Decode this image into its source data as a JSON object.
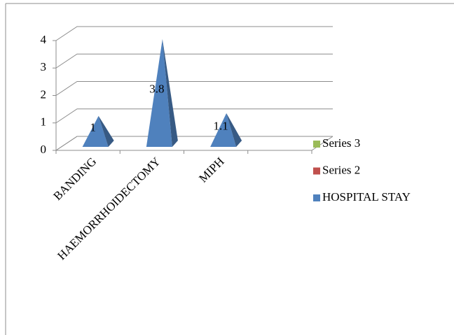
{
  "chart_data": {
    "type": "pyramid",
    "categories": [
      "BANDING",
      "HAEMORRHOIDECTOMY",
      "MIPH",
      null
    ],
    "series": [
      {
        "name": "HOSPITAL STAY",
        "color": "#4f81bd",
        "values": [
          1,
          3.8,
          1.1,
          null
        ]
      },
      {
        "name": "Series 2",
        "color": "#c0504d",
        "values": [
          null,
          null,
          null,
          null
        ]
      },
      {
        "name": "Series 3",
        "color": "#9bbb59",
        "values": [
          null,
          null,
          null,
          null
        ]
      }
    ],
    "ylim": [
      0,
      4
    ],
    "yticks": [
      0,
      1,
      2,
      3,
      4
    ],
    "grid": true,
    "legend": "right"
  }
}
